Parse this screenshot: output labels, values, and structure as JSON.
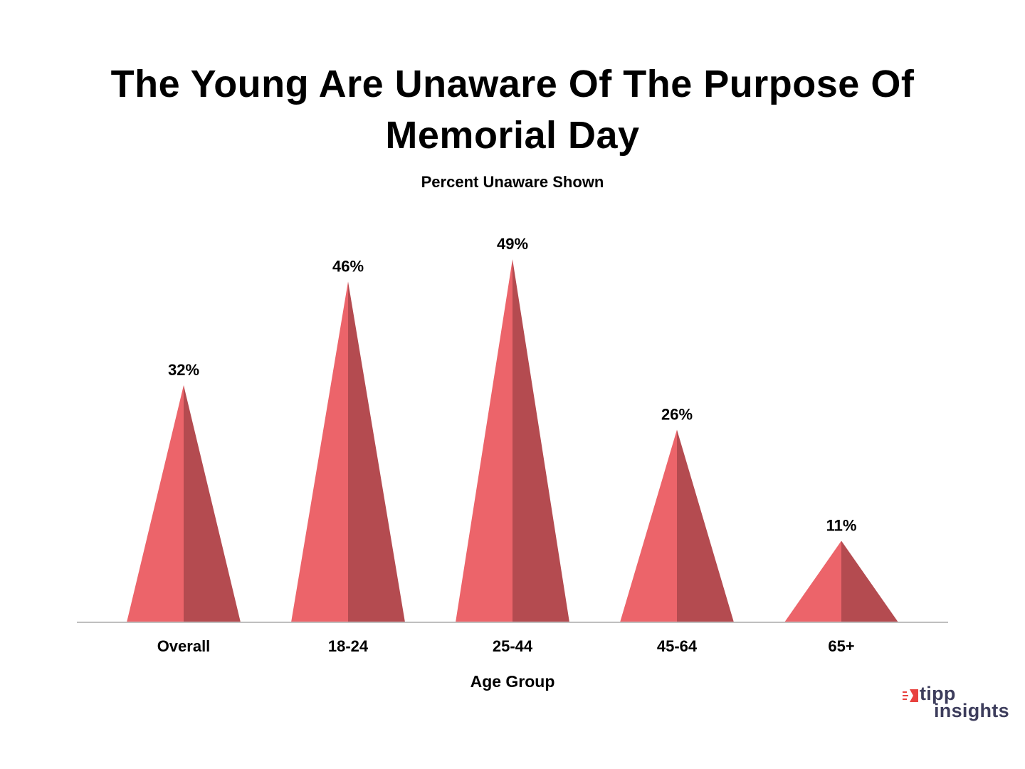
{
  "chart_data": {
    "type": "bar",
    "title": "The Young Are Unaware Of The Purpose Of Memorial Day",
    "subtitle": "Percent Unaware Shown",
    "xlabel": "Age Group",
    "ylabel": "",
    "categories": [
      "Overall",
      "18-24",
      "25-44",
      "45-64",
      "65+"
    ],
    "values": [
      32,
      46,
      49,
      26,
      11
    ],
    "value_labels": [
      "32%",
      "46%",
      "49%",
      "26%",
      "11%"
    ],
    "ylim": [
      0,
      50
    ],
    "bar_shape": "triangle",
    "grid": false,
    "legend": "none",
    "colors": {
      "light": "#ec646a",
      "dark": "#b44b50",
      "axis": "#bfbfbf"
    }
  },
  "logo": {
    "line1": "tipp",
    "line2": "insights",
    "mark_color": "#e8423f",
    "text_color": "#3d3d5c"
  }
}
